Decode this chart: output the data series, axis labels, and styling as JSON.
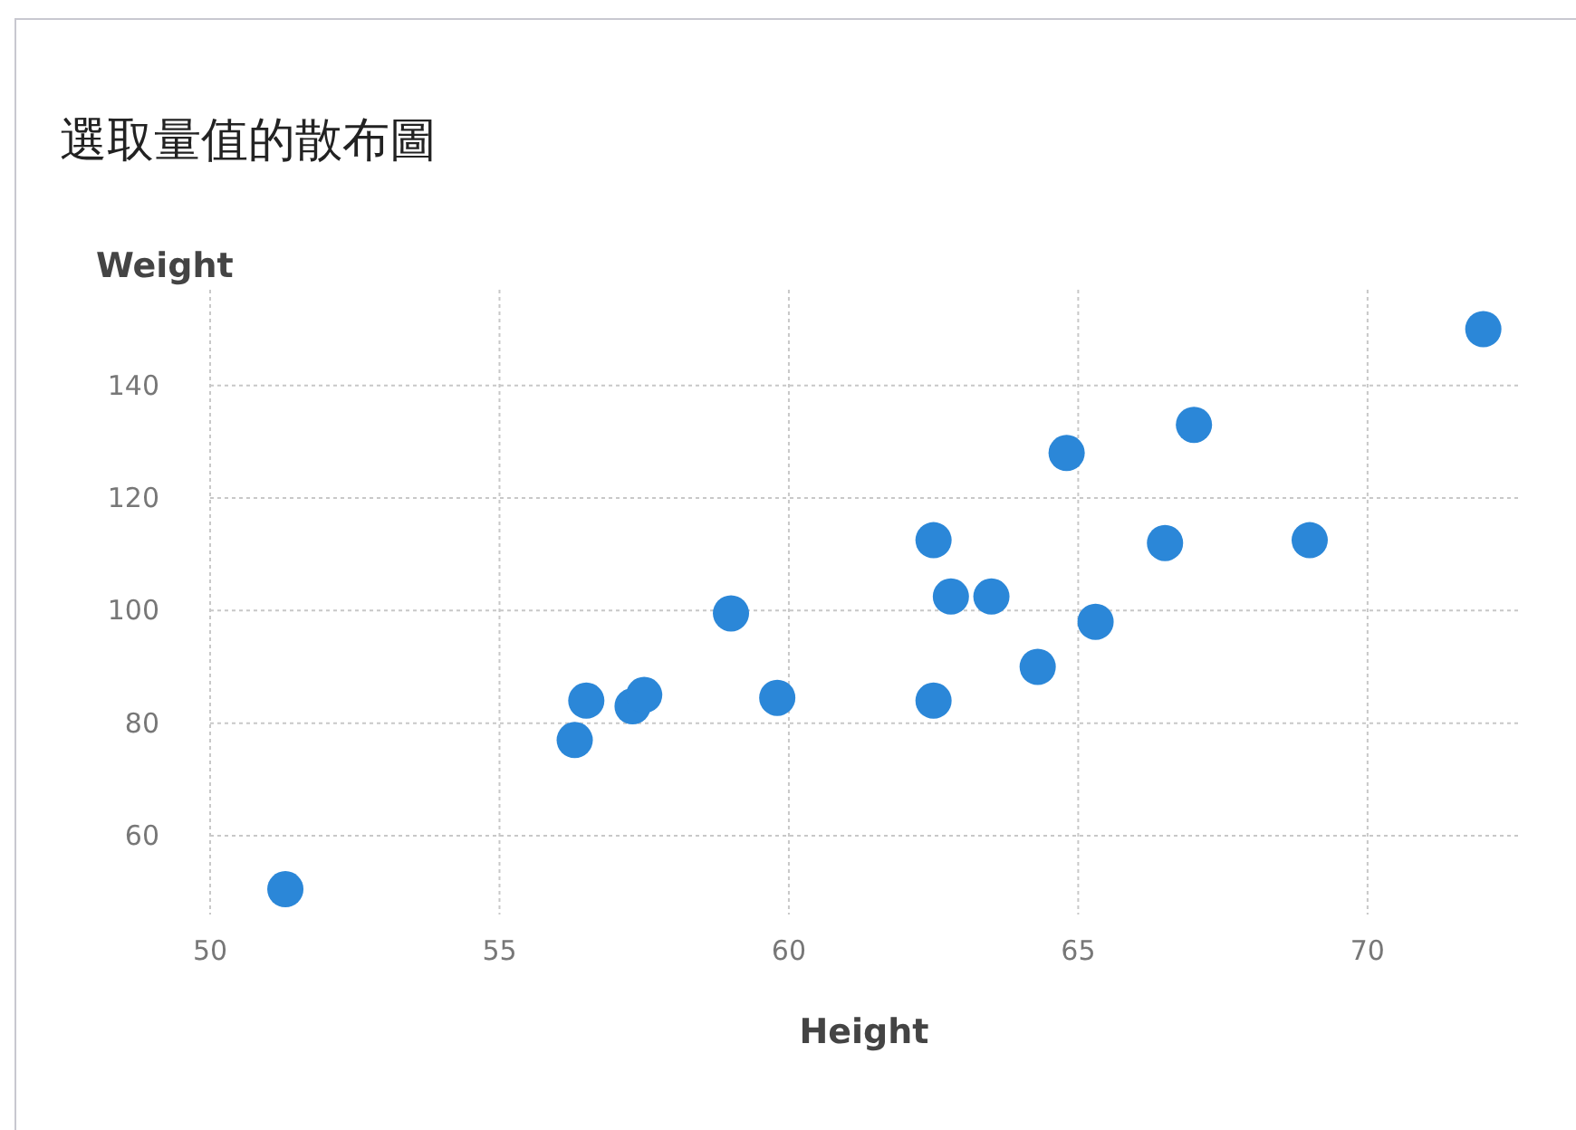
{
  "chart_data": {
    "type": "scatter",
    "title": "選取量值的散布圖",
    "xlabel": "Height",
    "ylabel": "Weight",
    "x": [
      69.0,
      56.5,
      65.3,
      62.8,
      63.5,
      57.3,
      59.8,
      62.5,
      62.5,
      59.0,
      51.3,
      64.3,
      56.3,
      66.5,
      72.0,
      64.8,
      67.0,
      57.5
    ],
    "values": [
      112.5,
      84.0,
      98.0,
      102.5,
      102.5,
      83.0,
      84.5,
      112.5,
      84.0,
      99.5,
      50.5,
      90.0,
      77.0,
      112.0,
      150.0,
      128.0,
      133.0,
      85.0
    ],
    "color": "#2b87d8",
    "marker": "circle",
    "grid": true,
    "xlim": [
      50,
      72.6
    ],
    "xticks": [
      50,
      55,
      60,
      65,
      70
    ],
    "ylim": [
      46,
      157
    ],
    "yticks": [
      60,
      80,
      100,
      120,
      140
    ]
  }
}
